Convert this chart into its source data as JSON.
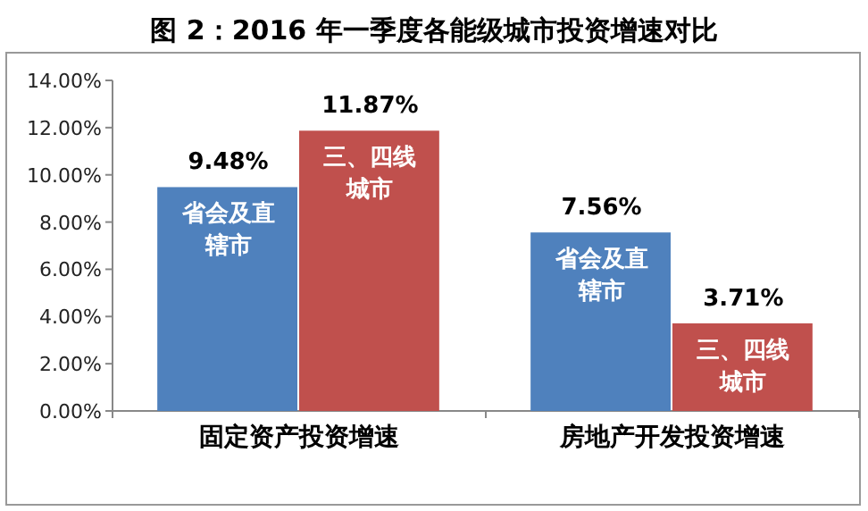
{
  "chart_data": {
    "type": "bar",
    "title": "图 2：2016 年一季度各能级城市投资增速对比",
    "categories": [
      "固定资产投资增速",
      "房地产开发投资增速"
    ],
    "series": [
      {
        "name": "省会及直辖市",
        "color": "#4f81bd",
        "values": [
          9.48,
          7.56
        ],
        "value_labels": [
          "9.48%",
          "7.56%"
        ]
      },
      {
        "name": "三、四线城市",
        "color": "#c0504d",
        "values": [
          11.87,
          3.71
        ],
        "value_labels": [
          "11.87%",
          "3.71%"
        ]
      }
    ],
    "ylim": [
      0,
      14
    ],
    "yticks": [
      {
        "value": 0,
        "label": "0.00%"
      },
      {
        "value": 2,
        "label": "2.00%"
      },
      {
        "value": 4,
        "label": "4.00%"
      },
      {
        "value": 6,
        "label": "6.00%"
      },
      {
        "value": 8,
        "label": "8.00%"
      },
      {
        "value": 10,
        "label": "10.00%"
      },
      {
        "value": 12,
        "label": "12.00%"
      },
      {
        "value": 14,
        "label": "14.00%"
      }
    ],
    "grid": false
  }
}
